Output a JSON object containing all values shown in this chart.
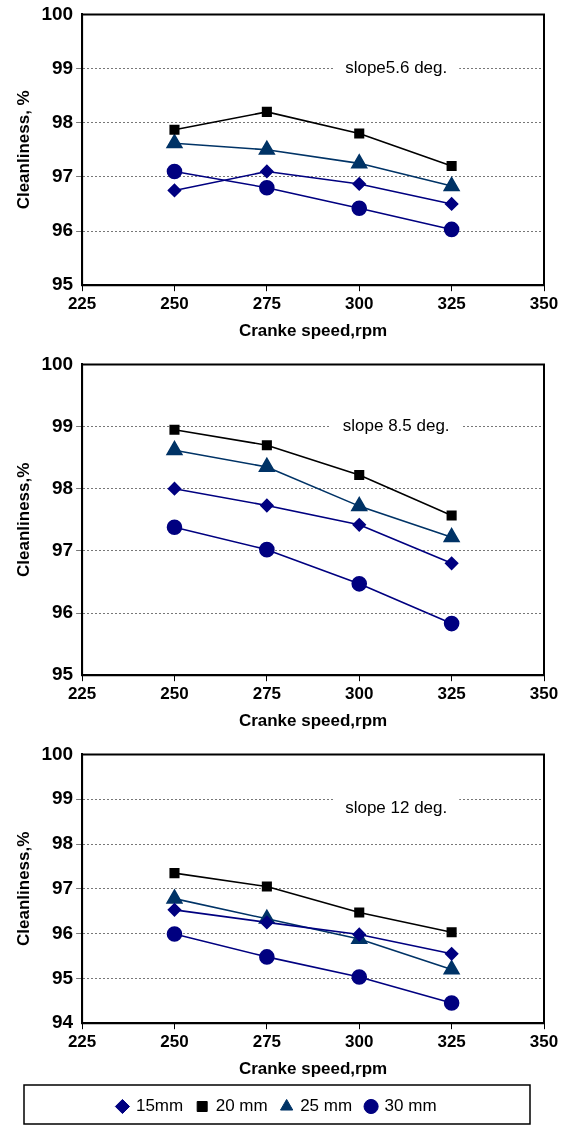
{
  "chart_data": [
    {
      "type": "line",
      "xlabel": "Cranke speed,rpm",
      "ylabel": "Cleanliness, %",
      "annotations": [
        "slope5.6 deg."
      ],
      "x": [
        250,
        275,
        300,
        325
      ],
      "xlim": [
        225,
        350
      ],
      "xticks": [
        225,
        250,
        275,
        300,
        325,
        350
      ],
      "ylim": [
        95,
        100
      ],
      "yticks": [
        95,
        96,
        97,
        98,
        99,
        100
      ],
      "grid": "y",
      "legend": false,
      "series": [
        {
          "color": "#000080",
          "marker": "diamond",
          "values": [
            96.75,
            97.1,
            96.87,
            96.5
          ]
        },
        {
          "color": "#000000",
          "marker": "square",
          "values": [
            97.87,
            98.2,
            97.8,
            97.2
          ]
        },
        {
          "color": "#003366",
          "marker": "triangle",
          "values": [
            97.62,
            97.5,
            97.25,
            96.83
          ]
        },
        {
          "color": "#000080",
          "marker": "circle",
          "values": [
            97.1,
            96.8,
            96.42,
            96.03
          ]
        }
      ]
    },
    {
      "type": "line",
      "xlabel": "Cranke speed,rpm",
      "ylabel": "Cleanliness,%",
      "annotations": [
        "slope 8.5 deg."
      ],
      "x": [
        250,
        275,
        300,
        325
      ],
      "xlim": [
        225,
        350
      ],
      "xticks": [
        225,
        250,
        275,
        300,
        325,
        350
      ],
      "ylim": [
        95,
        100
      ],
      "yticks": [
        95,
        96,
        97,
        98,
        99,
        100
      ],
      "grid": "y",
      "legend": false,
      "series": [
        {
          "color": "#000080",
          "marker": "diamond",
          "values": [
            98.0,
            97.73,
            97.42,
            96.8
          ]
        },
        {
          "color": "#000000",
          "marker": "square",
          "values": [
            98.95,
            98.7,
            98.22,
            97.57
          ]
        },
        {
          "color": "#003366",
          "marker": "triangle",
          "values": [
            98.62,
            98.35,
            97.72,
            97.22
          ]
        },
        {
          "color": "#000080",
          "marker": "circle",
          "values": [
            97.38,
            97.02,
            96.47,
            95.83
          ]
        }
      ]
    },
    {
      "type": "line",
      "xlabel": "Cranke speed,rpm",
      "ylabel": "Cleanliness,%",
      "annotations": [
        "slope 12 deg."
      ],
      "x": [
        250,
        275,
        300,
        325
      ],
      "xlim": [
        225,
        350
      ],
      "xticks": [
        225,
        250,
        275,
        300,
        325,
        350
      ],
      "ylim": [
        94,
        100
      ],
      "yticks": [
        94,
        95,
        96,
        97,
        98,
        99,
        100
      ],
      "grid": "y",
      "legend": "bottom",
      "series": [
        {
          "name": "15mm",
          "color": "#000080",
          "marker": "diamond",
          "values": [
            96.53,
            96.25,
            95.98,
            95.55
          ]
        },
        {
          "name": "20 mm",
          "color": "#000000",
          "marker": "square",
          "values": [
            97.35,
            97.05,
            96.47,
            96.03
          ]
        },
        {
          "name": "25 mm",
          "color": "#003366",
          "marker": "triangle",
          "values": [
            96.78,
            96.33,
            95.88,
            95.2
          ]
        },
        {
          "name": "30 mm",
          "color": "#000080",
          "marker": "circle",
          "values": [
            95.99,
            95.48,
            95.03,
            94.45
          ]
        }
      ]
    }
  ]
}
